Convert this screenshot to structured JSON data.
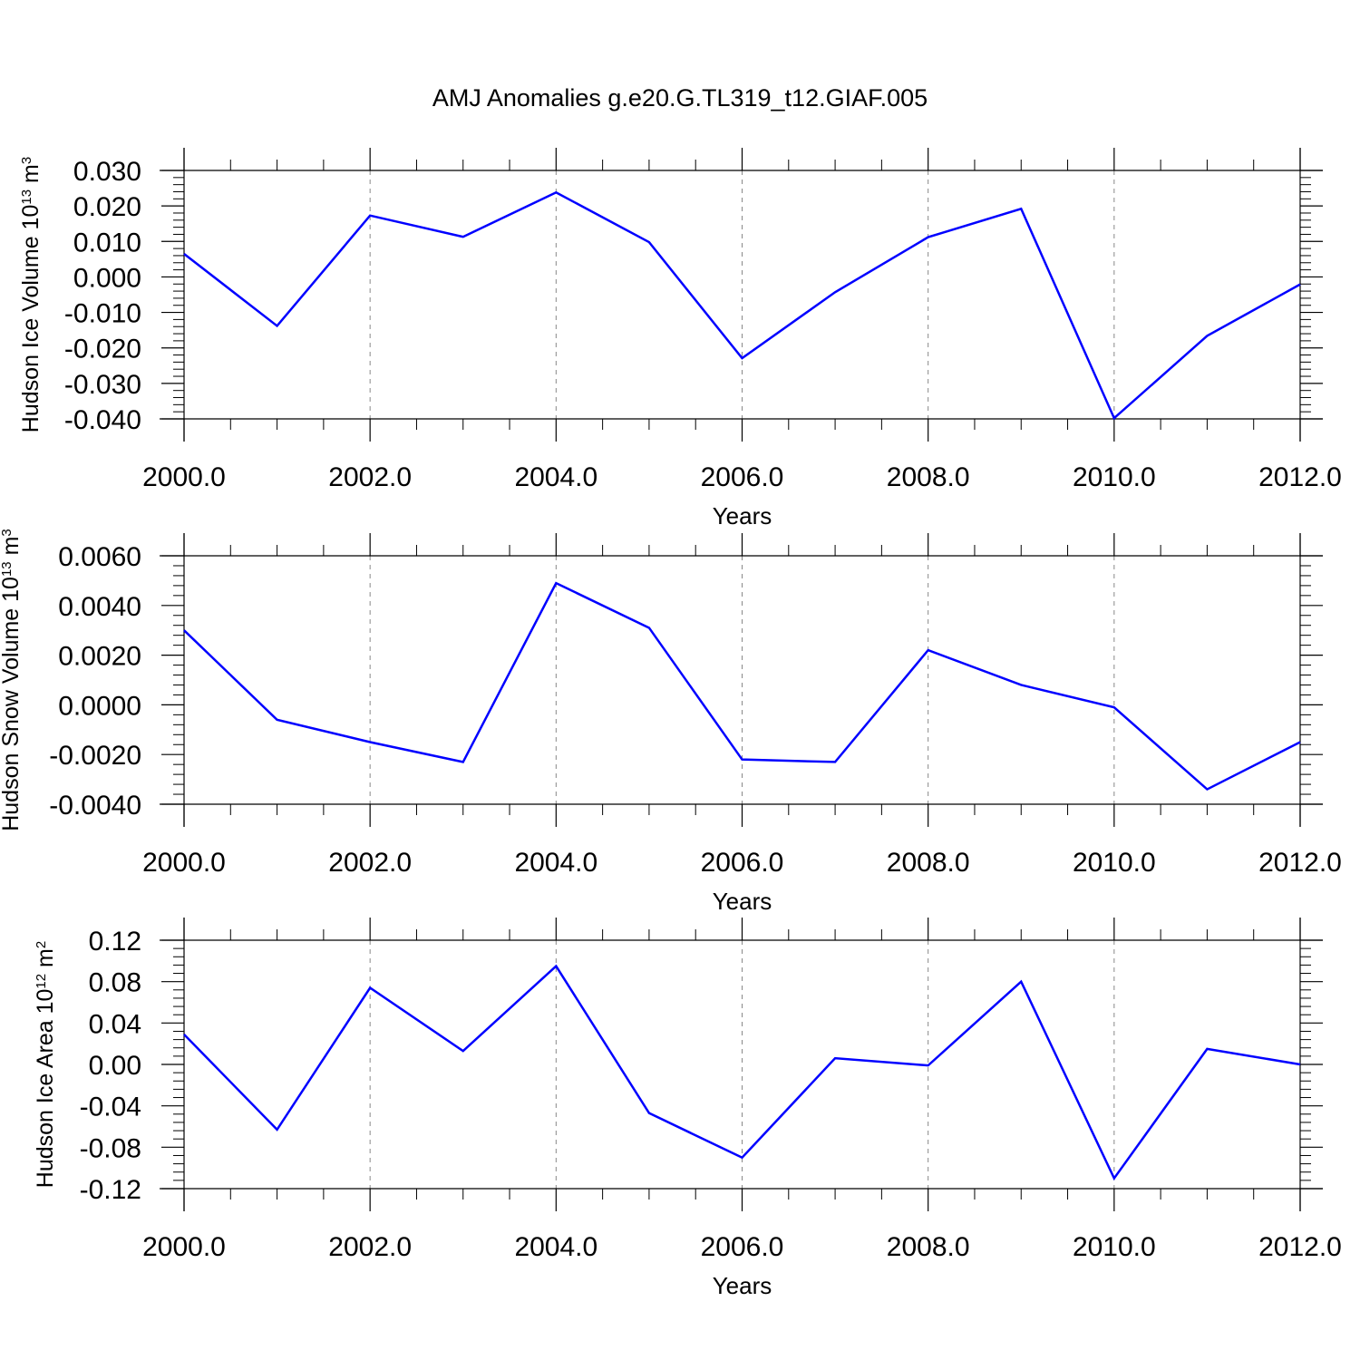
{
  "title": "AMJ Anomalies g.e20.G.TL319_t12.GIAF.005",
  "colors": {
    "line": "#0000ff",
    "axis": "#000000",
    "grid": "#888888"
  },
  "chart_data": [
    {
      "type": "line",
      "xlabel": "Years",
      "ylabel": {
        "main": "Hudson Ice Volume 10",
        "exp": "13",
        "unit": " m",
        "unit_exp": "3"
      },
      "x": [
        2000,
        2001,
        2002,
        2003,
        2004,
        2005,
        2006,
        2007,
        2008,
        2009,
        2010,
        2011,
        2012
      ],
      "series": [
        {
          "values": [
            0.0065,
            -0.0138,
            0.0173,
            0.0113,
            0.0238,
            0.0098,
            -0.0229,
            -0.0043,
            0.0112,
            0.0192,
            -0.0398,
            -0.0166,
            -0.0021
          ]
        }
      ],
      "xlim": [
        2000,
        2012
      ],
      "ylim": [
        -0.04,
        0.03
      ],
      "xticks": [
        2000,
        2002,
        2004,
        2006,
        2008,
        2010,
        2012
      ],
      "xtick_labels": [
        "2000.0",
        "2002.0",
        "2004.0",
        "2006.0",
        "2008.0",
        "2010.0",
        "2012.0"
      ],
      "yticks": [
        0.03,
        0.02,
        0.01,
        0.0,
        -0.01,
        -0.02,
        -0.03,
        -0.04
      ],
      "ytick_labels": [
        "0.030",
        "0.020",
        "0.010",
        "0.000",
        "-0.010",
        "-0.020",
        "-0.030",
        "-0.040"
      ],
      "grid": "vertical dashed at major x ticks"
    },
    {
      "type": "line",
      "xlabel": "Years",
      "ylabel": {
        "main": "Hudson Snow Volume 10",
        "exp": "13",
        "unit": " m",
        "unit_exp": "3"
      },
      "x": [
        2000,
        2001,
        2002,
        2003,
        2004,
        2005,
        2006,
        2007,
        2008,
        2009,
        2010,
        2011,
        2012
      ],
      "series": [
        {
          "values": [
            0.003,
            -0.0006,
            -0.0015,
            -0.0023,
            0.0049,
            0.0031,
            -0.0022,
            -0.0023,
            0.0022,
            0.0008,
            -0.0001,
            -0.0034,
            -0.0015
          ]
        }
      ],
      "xlim": [
        2000,
        2012
      ],
      "ylim": [
        -0.004,
        0.006
      ],
      "xticks": [
        2000,
        2002,
        2004,
        2006,
        2008,
        2010,
        2012
      ],
      "xtick_labels": [
        "2000.0",
        "2002.0",
        "2004.0",
        "2006.0",
        "2008.0",
        "2010.0",
        "2012.0"
      ],
      "yticks": [
        0.006,
        0.004,
        0.002,
        0.0,
        -0.002,
        -0.004
      ],
      "ytick_labels": [
        "0.0060",
        "0.0040",
        "0.0020",
        "0.0000",
        "-0.0020",
        "-0.0040"
      ],
      "grid": "vertical dashed at major x ticks"
    },
    {
      "type": "line",
      "xlabel": "Years",
      "ylabel": {
        "main": "Hudson Ice Area 10",
        "exp": "12",
        "unit": " m",
        "unit_exp": "2"
      },
      "x": [
        2000,
        2001,
        2002,
        2003,
        2004,
        2005,
        2006,
        2007,
        2008,
        2009,
        2010,
        2011,
        2012
      ],
      "series": [
        {
          "values": [
            0.029,
            -0.063,
            0.074,
            0.013,
            0.095,
            -0.047,
            -0.09,
            0.006,
            -0.001,
            0.08,
            -0.11,
            0.015,
            0.0
          ]
        }
      ],
      "xlim": [
        2000,
        2012
      ],
      "ylim": [
        -0.12,
        0.12
      ],
      "xticks": [
        2000,
        2002,
        2004,
        2006,
        2008,
        2010,
        2012
      ],
      "xtick_labels": [
        "2000.0",
        "2002.0",
        "2004.0",
        "2006.0",
        "2008.0",
        "2010.0",
        "2012.0"
      ],
      "yticks": [
        0.12,
        0.08,
        0.04,
        0.0,
        -0.04,
        -0.08,
        -0.12
      ],
      "ytick_labels": [
        "0.12",
        "0.08",
        "0.04",
        "0.00",
        "-0.04",
        "-0.08",
        "-0.12"
      ],
      "grid": "vertical dashed at major x ticks"
    }
  ]
}
